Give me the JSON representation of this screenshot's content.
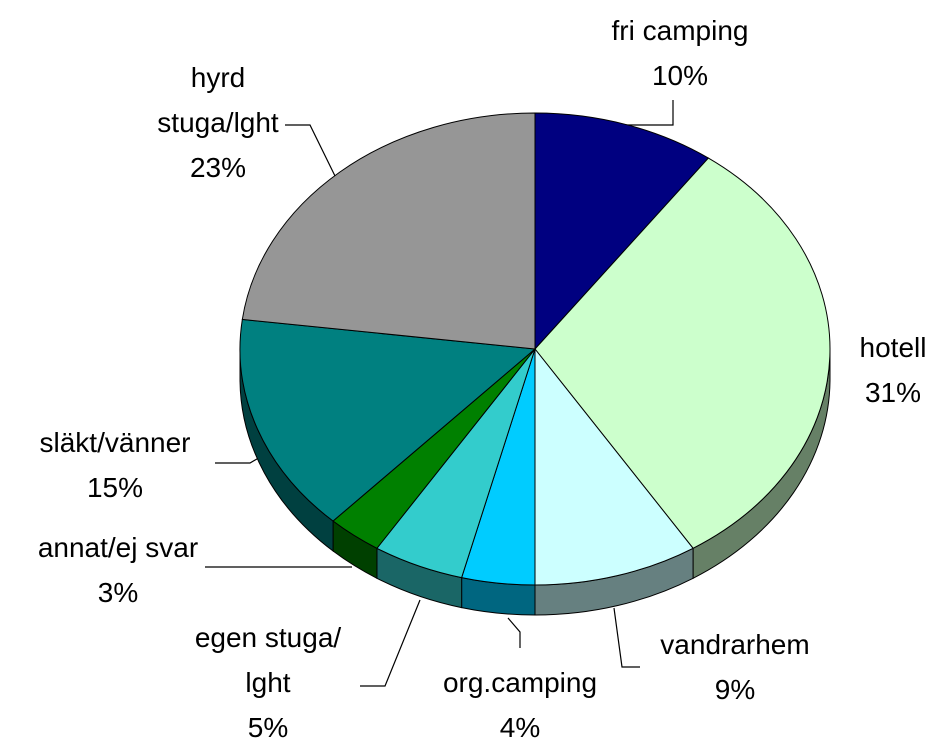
{
  "chart_data": {
    "type": "pie",
    "categories": [
      "fri camping",
      "hotell",
      "vandrarhem",
      "org.camping",
      "egen stuga/\nlght",
      "annat/ej svar",
      "släkt/vänner",
      "hyrd\nstuga/lght"
    ],
    "values": [
      10,
      31,
      9,
      4,
      5,
      3,
      15,
      23
    ],
    "value_labels": [
      "10%",
      "31%",
      "9%",
      "4%",
      "5%",
      "3%",
      "15%",
      "23%"
    ],
    "colors": [
      "#000080",
      "#ccffcc",
      "#ccffff",
      "#00ccff",
      "#33cccc",
      "#008000",
      "#008080",
      "#969696"
    ]
  }
}
